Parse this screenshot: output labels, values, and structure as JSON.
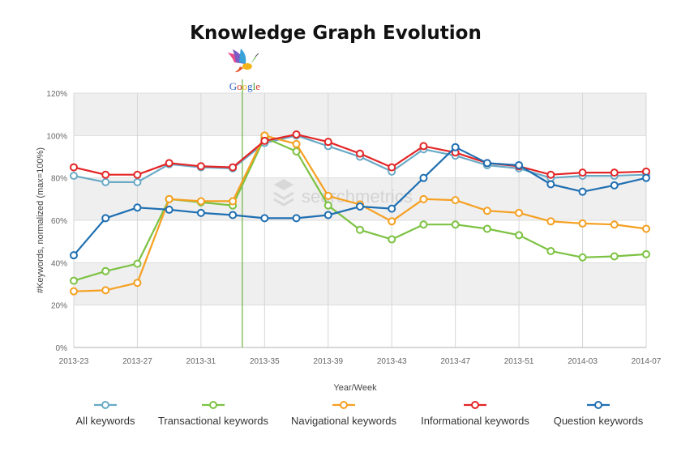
{
  "chart_data": {
    "type": "line",
    "title": "Knowledge Graph Evolution",
    "xlabel": "Year/Week",
    "ylabel": "#Keywords, normalized (max=100%)",
    "ylim": [
      0,
      120
    ],
    "yticks": [
      0,
      20,
      40,
      60,
      80,
      100,
      120
    ],
    "ytick_labels": [
      "0%",
      "20%",
      "40%",
      "60%",
      "80%",
      "100%",
      "120%"
    ],
    "x": [
      "2013-23",
      "2013-25",
      "2013-27",
      "2013-29",
      "2013-31",
      "2013-33",
      "2013-35",
      "2013-37",
      "2013-39",
      "2013-41",
      "2013-43",
      "2013-45",
      "2013-47",
      "2013-49",
      "2013-51",
      "2014-01",
      "2014-03",
      "2014-05",
      "2014-07"
    ],
    "xtick_labels": [
      "2013-23",
      "2013-27",
      "2013-31",
      "2013-35",
      "2013-39",
      "2013-43",
      "2013-47",
      "2013-51",
      "2014-03",
      "2014-07"
    ],
    "xtick_indices": [
      0,
      2,
      4,
      6,
      8,
      10,
      12,
      14,
      16,
      18
    ],
    "marker_index": 5.3,
    "marker_label": "Google",
    "watermark": "searchmetrics",
    "grid": true,
    "legend_position": "bottom",
    "series": [
      {
        "name": "All keywords",
        "color": "#6aaac6",
        "values": [
          81,
          78,
          78,
          86.5,
          85,
          84.5,
          96.5,
          100,
          95,
          90,
          83,
          93.5,
          90.5,
          86,
          84.5,
          80,
          81,
          81,
          81.5
        ]
      },
      {
        "name": "Transactional keywords",
        "color": "#7cc242",
        "values": [
          31.5,
          36,
          39.5,
          70,
          68.5,
          67,
          99,
          92.5,
          67,
          55.5,
          51,
          58,
          58,
          56,
          53,
          45.5,
          42.5,
          43,
          44
        ]
      },
      {
        "name": "Navigational keywords",
        "color": "#f5a021",
        "values": [
          26.5,
          27,
          30.5,
          70,
          69,
          69,
          100,
          96,
          71.5,
          67.5,
          59.5,
          70,
          69.5,
          64.5,
          63.5,
          59.5,
          58.5,
          58,
          56
        ]
      },
      {
        "name": "Informational keywords",
        "color": "#e32526",
        "values": [
          85,
          81.5,
          81.5,
          87,
          85.5,
          85,
          97.5,
          100.5,
          97,
          91.5,
          85,
          95,
          92,
          87,
          85.5,
          81.5,
          82.5,
          82.5,
          83
        ]
      },
      {
        "name": "Question keywords",
        "color": "#1f6fb2",
        "values": [
          43.5,
          61,
          66,
          65,
          63.5,
          62.5,
          61,
          61,
          62.5,
          66.5,
          65.5,
          80,
          94.5,
          87,
          86,
          77,
          73.5,
          76.5,
          80
        ]
      }
    ]
  }
}
